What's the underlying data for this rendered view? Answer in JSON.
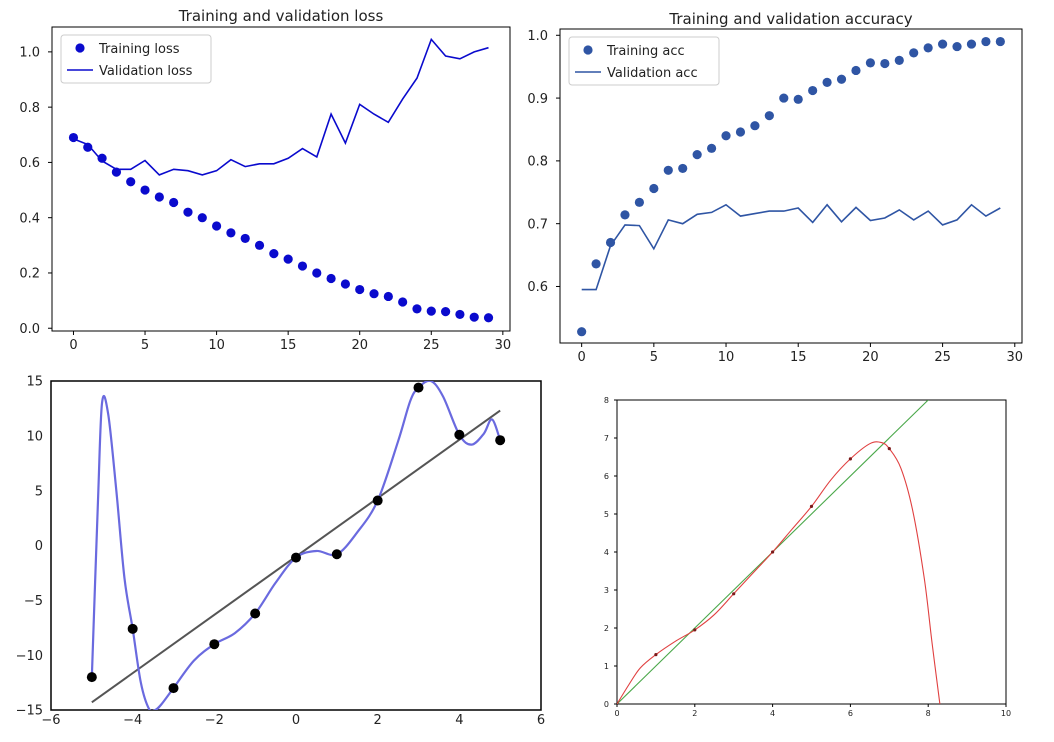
{
  "colors": {
    "loss_blue": "#0a0acd",
    "acc_blue": "#2f55a4",
    "fit_purple": "#6a6adf",
    "fit_black": "#000000",
    "line_gray": "#555555",
    "curve_red": "#e04040",
    "line_green": "#4aa84a"
  },
  "chart_data": [
    {
      "id": "loss",
      "type": "line",
      "title": "Training and validation loss",
      "xlabel": "",
      "ylabel": "",
      "xlim": [
        -1.5,
        30.5
      ],
      "ylim": [
        -0.01,
        1.09
      ],
      "xticks": [
        0,
        5,
        10,
        15,
        20,
        25,
        30
      ],
      "yticks": [
        0.0,
        0.2,
        0.4,
        0.6,
        0.8,
        1.0
      ],
      "xtick_labels": [
        "0",
        "5",
        "10",
        "15",
        "20",
        "25",
        "30"
      ],
      "ytick_labels": [
        "0.0",
        "0.2",
        "0.4",
        "0.6",
        "0.8",
        "1.0"
      ],
      "grid": false,
      "legend": "top-left",
      "series": [
        {
          "name": "Training loss",
          "style": "dots",
          "x": [
            0,
            1,
            2,
            3,
            4,
            5,
            6,
            7,
            8,
            9,
            10,
            11,
            12,
            13,
            14,
            15,
            16,
            17,
            18,
            19,
            20,
            21,
            22,
            23,
            24,
            25,
            26,
            27,
            28,
            29
          ],
          "values": [
            0.69,
            0.655,
            0.615,
            0.565,
            0.53,
            0.5,
            0.475,
            0.455,
            0.42,
            0.4,
            0.37,
            0.345,
            0.325,
            0.3,
            0.27,
            0.25,
            0.225,
            0.2,
            0.18,
            0.16,
            0.14,
            0.125,
            0.115,
            0.095,
            0.07,
            0.062,
            0.06,
            0.05,
            0.04,
            0.038
          ]
        },
        {
          "name": "Validation loss",
          "style": "line",
          "x": [
            0,
            1,
            2,
            3,
            4,
            5,
            6,
            7,
            8,
            9,
            10,
            11,
            12,
            13,
            14,
            15,
            16,
            17,
            18,
            19,
            20,
            21,
            22,
            23,
            24,
            25,
            26,
            27,
            28,
            29
          ],
          "values": [
            0.685,
            0.665,
            0.605,
            0.575,
            0.575,
            0.607,
            0.555,
            0.575,
            0.57,
            0.555,
            0.57,
            0.61,
            0.585,
            0.595,
            0.595,
            0.615,
            0.65,
            0.62,
            0.775,
            0.67,
            0.81,
            0.775,
            0.745,
            0.83,
            0.905,
            1.045,
            0.985,
            0.975,
            1.0,
            1.015
          ]
        }
      ]
    },
    {
      "id": "acc",
      "type": "line",
      "title": "Training and validation accuracy",
      "xlabel": "",
      "ylabel": "",
      "xlim": [
        -1.5,
        30.5
      ],
      "ylim": [
        0.51,
        1.01
      ],
      "xticks": [
        0,
        5,
        10,
        15,
        20,
        25,
        30
      ],
      "yticks": [
        0.6,
        0.7,
        0.8,
        0.9,
        1.0
      ],
      "xtick_labels": [
        "0",
        "5",
        "10",
        "15",
        "20",
        "25",
        "30"
      ],
      "ytick_labels": [
        "0.6",
        "0.7",
        "0.8",
        "0.9",
        "1.0"
      ],
      "grid": false,
      "legend": "top-left",
      "series": [
        {
          "name": "Training acc",
          "style": "dots",
          "x": [
            0,
            1,
            2,
            3,
            4,
            5,
            6,
            7,
            8,
            9,
            10,
            11,
            12,
            13,
            14,
            15,
            16,
            17,
            18,
            19,
            20,
            21,
            22,
            23,
            24,
            25,
            26,
            27,
            28,
            29
          ],
          "values": [
            0.528,
            0.636,
            0.67,
            0.714,
            0.734,
            0.756,
            0.785,
            0.788,
            0.81,
            0.82,
            0.84,
            0.846,
            0.856,
            0.872,
            0.9,
            0.898,
            0.912,
            0.925,
            0.93,
            0.944,
            0.956,
            0.955,
            0.96,
            0.972,
            0.98,
            0.986,
            0.982,
            0.986,
            0.99,
            0.99
          ]
        },
        {
          "name": "Validation acc",
          "style": "line",
          "x": [
            0,
            1,
            2,
            3,
            4,
            5,
            6,
            7,
            8,
            9,
            10,
            11,
            12,
            13,
            14,
            15,
            16,
            17,
            18,
            19,
            20,
            21,
            22,
            23,
            24,
            25,
            26,
            27,
            28,
            29
          ],
          "values": [
            0.595,
            0.595,
            0.665,
            0.698,
            0.697,
            0.66,
            0.706,
            0.7,
            0.715,
            0.718,
            0.73,
            0.712,
            0.716,
            0.72,
            0.72,
            0.725,
            0.702,
            0.73,
            0.703,
            0.726,
            0.705,
            0.709,
            0.722,
            0.706,
            0.72,
            0.698,
            0.706,
            0.73,
            0.712,
            0.725
          ]
        }
      ]
    },
    {
      "id": "poly",
      "type": "scatter",
      "title": "",
      "xlabel": "",
      "ylabel": "",
      "xlim": [
        -6,
        6
      ],
      "ylim": [
        -15,
        15
      ],
      "xticks": [
        -6,
        -4,
        -2,
        0,
        2,
        4,
        6
      ],
      "yticks": [
        -15,
        -10,
        -5,
        0,
        5,
        10,
        15
      ],
      "xtick_labels": [
        "−6",
        "−4",
        "−2",
        "0",
        "2",
        "4",
        "6"
      ],
      "ytick_labels": [
        "−15",
        "−10",
        "−5",
        "0",
        "5",
        "10",
        "15"
      ],
      "grid": false,
      "points": {
        "x": [
          -5,
          -4,
          -3,
          -2,
          -1,
          0,
          1,
          2,
          3,
          4,
          5
        ],
        "y": [
          -12,
          -7.6,
          -13,
          -9,
          -6.2,
          -1.1,
          -0.8,
          4.1,
          14.4,
          10.1,
          9.6
        ]
      },
      "linear_fit": {
        "x": [
          -5,
          5
        ],
        "y": [
          -14.3,
          12.3
        ]
      },
      "interpolation_curve": {
        "x": [
          -5,
          -4.85,
          -4.75,
          -4.6,
          -4.4,
          -4.2,
          -4,
          -3.8,
          -3.6,
          -3.45,
          -3.3,
          -3,
          -2.5,
          -2,
          -1.5,
          -1,
          -0.5,
          0,
          0.5,
          1,
          1.5,
          2,
          2.5,
          2.8,
          3,
          3.3,
          3.6,
          4,
          4.3,
          4.6,
          4.8,
          5
        ],
        "y": [
          -12,
          4,
          13,
          12,
          5,
          -3,
          -7.6,
          -12.5,
          -14.9,
          -15,
          -14.5,
          -13,
          -10.5,
          -9,
          -8,
          -6.2,
          -3.4,
          -1.1,
          -0.5,
          -0.8,
          1.2,
          4.1,
          9.5,
          13.2,
          14.4,
          15,
          13.6,
          10.1,
          9.2,
          10.2,
          11.5,
          9.6
        ]
      }
    },
    {
      "id": "interp",
      "type": "line",
      "title": "",
      "xlabel": "",
      "ylabel": "",
      "xlim": [
        0,
        10
      ],
      "ylim": [
        0,
        8
      ],
      "xticks": [
        0,
        2,
        4,
        6,
        8,
        10
      ],
      "yticks": [
        0,
        1,
        2,
        3,
        4,
        5,
        6,
        7,
        8
      ],
      "xtick_labels": [
        "0",
        "2",
        "4",
        "6",
        "8",
        "10"
      ],
      "ytick_labels": [
        "0",
        "1",
        "2",
        "3",
        "4",
        "5",
        "6",
        "7",
        "8"
      ],
      "grid": false,
      "diagonal_line": {
        "x": [
          0,
          8
        ],
        "y": [
          0,
          8
        ]
      },
      "curve": {
        "x": [
          0,
          0.3,
          0.6,
          1,
          1.5,
          2,
          2.5,
          3,
          3.5,
          4,
          4.5,
          5,
          5.5,
          6,
          6.5,
          6.8,
          7,
          7.3,
          7.6,
          7.9,
          8.1,
          8.3
        ],
        "y": [
          0,
          0.5,
          0.95,
          1.3,
          1.65,
          1.95,
          2.35,
          2.9,
          3.45,
          4.0,
          4.6,
          5.2,
          5.9,
          6.45,
          6.85,
          6.88,
          6.72,
          6.2,
          5.1,
          3.3,
          1.6,
          0
        ]
      },
      "points": {
        "x": [
          1,
          2,
          3,
          4,
          5,
          6,
          7
        ],
        "y": [
          1.3,
          1.95,
          2.9,
          4.0,
          5.2,
          6.45,
          6.72
        ]
      }
    }
  ]
}
